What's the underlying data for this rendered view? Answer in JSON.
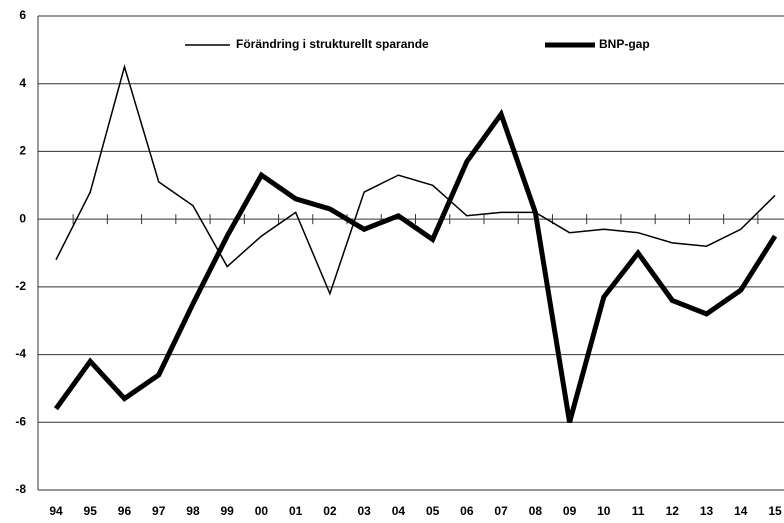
{
  "chart_data": {
    "type": "line",
    "categories": [
      "94",
      "95",
      "96",
      "97",
      "98",
      "99",
      "00",
      "01",
      "02",
      "03",
      "04",
      "05",
      "06",
      "07",
      "08",
      "09",
      "10",
      "11",
      "12",
      "13",
      "14",
      "15"
    ],
    "series": [
      {
        "name": "Förändring i strukturellt sparande",
        "color": "#000000",
        "width": 1.5,
        "values": [
          -1.2,
          0.8,
          4.5,
          1.1,
          0.4,
          -1.4,
          -0.5,
          0.2,
          -2.2,
          0.8,
          1.3,
          1.0,
          0.1,
          0.2,
          0.2,
          -0.4,
          -0.3,
          -0.4,
          -0.7,
          -0.8,
          -0.3,
          0.7
        ]
      },
      {
        "name": "BNP-gap",
        "color": "#000000",
        "width": 5,
        "values": [
          -5.6,
          -4.2,
          -5.3,
          -4.6,
          -2.5,
          -0.5,
          1.3,
          0.6,
          0.3,
          -0.3,
          0.1,
          -0.6,
          1.7,
          3.1,
          0.2,
          -6.0,
          -2.3,
          -1.0,
          -2.4,
          -2.8,
          -2.1,
          -0.5
        ]
      }
    ],
    "ylim": [
      -8,
      6
    ],
    "yticks": [
      -8,
      -6,
      -4,
      -2,
      0,
      2,
      4,
      6
    ],
    "grid": true
  }
}
